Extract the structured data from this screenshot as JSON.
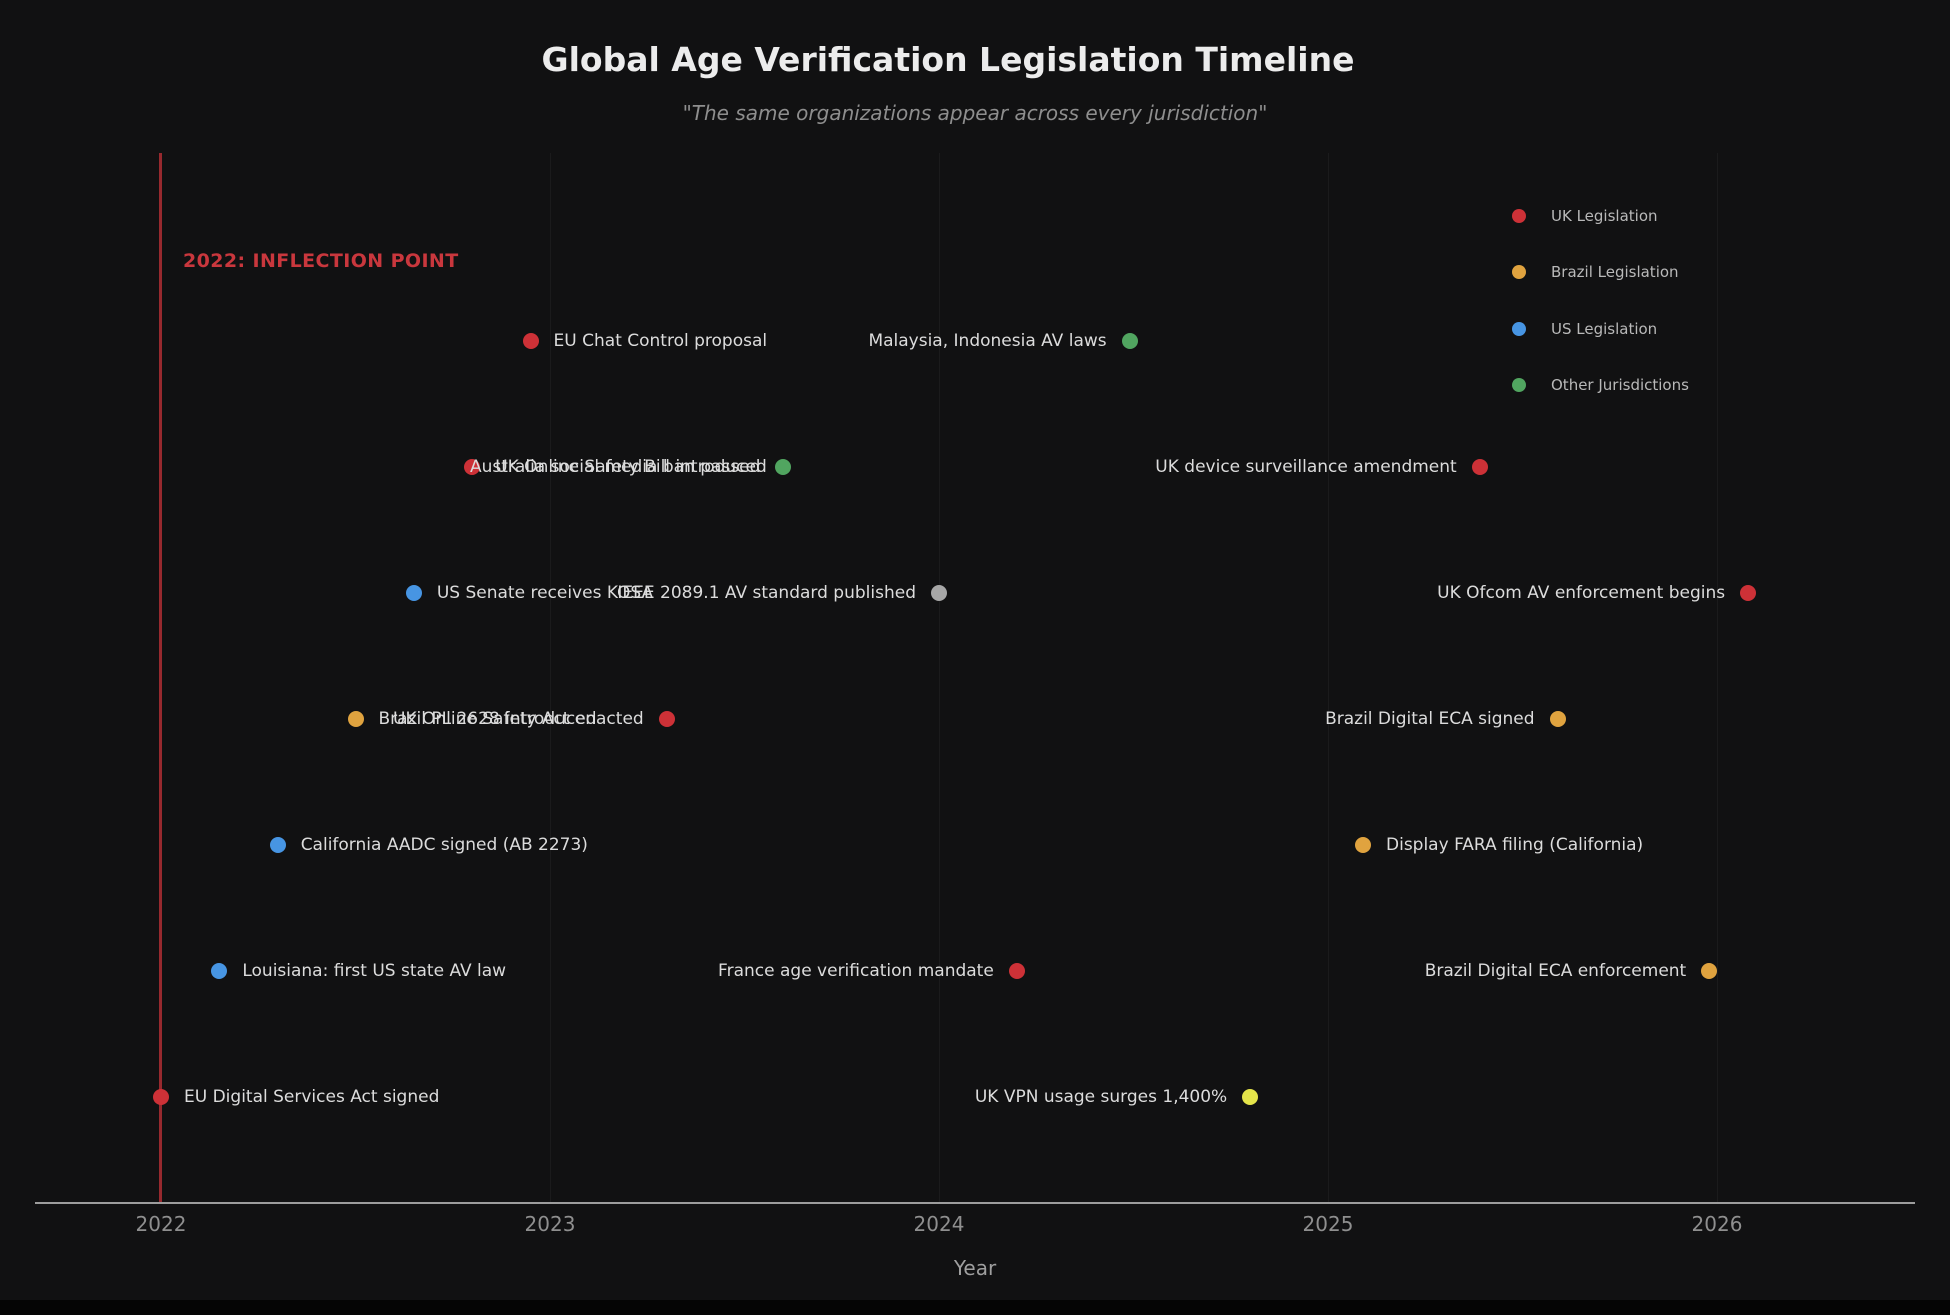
{
  "title": "Global Age Verification Legislation Timeline",
  "subtitle": "\"The same organizations appear across every jurisdiction\"",
  "annotation": "2022: INFLECTION POINT",
  "xaxis": {
    "label": "Year",
    "ticks": [
      "2022",
      "2023",
      "2024",
      "2025",
      "2026"
    ]
  },
  "legend": [
    {
      "label": "UK Legislation",
      "color": "#cd3137"
    },
    {
      "label": "Brazil Legislation",
      "color": "#e0a33f"
    },
    {
      "label": "US Legislation",
      "color": "#4795e3"
    },
    {
      "label": "Other Jurisdictions",
      "color": "#51a560"
    }
  ],
  "chart_data": {
    "type": "scatter",
    "title": "Global Age Verification Legislation Timeline",
    "xlabel": "Year",
    "x_range": [
      2021.68,
      2026.5
    ],
    "row_range": [
      0,
      8
    ],
    "grid": "very-faint-vertical",
    "legend_position": "upper-right",
    "annotation_line_x": 2022,
    "colors": {
      "red": "#cd3137",
      "orange": "#e0a33f",
      "blue": "#4795e3",
      "green": "#51a560",
      "gray": "#a7a7a7",
      "yellow": "#e4e44a"
    },
    "events": [
      {
        "label": "EU Chat Control proposal",
        "year": 2022.95,
        "row": 7,
        "color": "red",
        "side": "right"
      },
      {
        "label": "Malaysia, Indonesia AV laws",
        "year": 2024.49,
        "row": 7,
        "color": "green",
        "side": "left"
      },
      {
        "label": "UK Online Safety Bill introduced",
        "year": 2022.8,
        "row": 6,
        "color": "red",
        "side": "right"
      },
      {
        "label": "Australia social media ban passed",
        "year": 2023.6,
        "row": 6,
        "color": "green",
        "side": "left"
      },
      {
        "label": "UK device surveillance amendment",
        "year": 2025.39,
        "row": 6,
        "color": "red",
        "side": "left"
      },
      {
        "label": "US Senate receives KOSA",
        "year": 2022.65,
        "row": 5,
        "color": "blue",
        "side": "right"
      },
      {
        "label": "IEEE 2089.1 AV standard published",
        "year": 2024.0,
        "row": 5,
        "color": "gray",
        "side": "left"
      },
      {
        "label": "UK Ofcom AV enforcement begins",
        "year": 2026.08,
        "row": 5,
        "color": "red",
        "side": "left"
      },
      {
        "label": "Brazil PL 2628 introduced",
        "year": 2022.5,
        "row": 4,
        "color": "orange",
        "side": "right"
      },
      {
        "label": "UK Online Safety Act enacted",
        "year": 2023.3,
        "row": 4,
        "color": "red",
        "side": "left"
      },
      {
        "label": "Brazil Digital ECA signed",
        "year": 2025.59,
        "row": 4,
        "color": "orange",
        "side": "left"
      },
      {
        "label": "California AADC signed (AB 2273)",
        "year": 2022.3,
        "row": 3,
        "color": "blue",
        "side": "right"
      },
      {
        "label": "Display FARA filing (California)",
        "year": 2025.09,
        "row": 3,
        "color": "orange",
        "side": "right"
      },
      {
        "label": "Louisiana: first US state AV law",
        "year": 2022.15,
        "row": 2,
        "color": "blue",
        "side": "right"
      },
      {
        "label": "France age verification mandate",
        "year": 2024.2,
        "row": 2,
        "color": "red",
        "side": "left"
      },
      {
        "label": "Brazil Digital ECA enforcement",
        "year": 2025.98,
        "row": 2,
        "color": "orange",
        "side": "left"
      },
      {
        "label": "EU Digital Services Act signed",
        "year": 2022.0,
        "row": 1,
        "color": "red",
        "side": "right"
      },
      {
        "label": "UK VPN usage surges 1,400%",
        "year": 2024.8,
        "row": 1,
        "color": "yellow",
        "side": "left"
      }
    ]
  }
}
